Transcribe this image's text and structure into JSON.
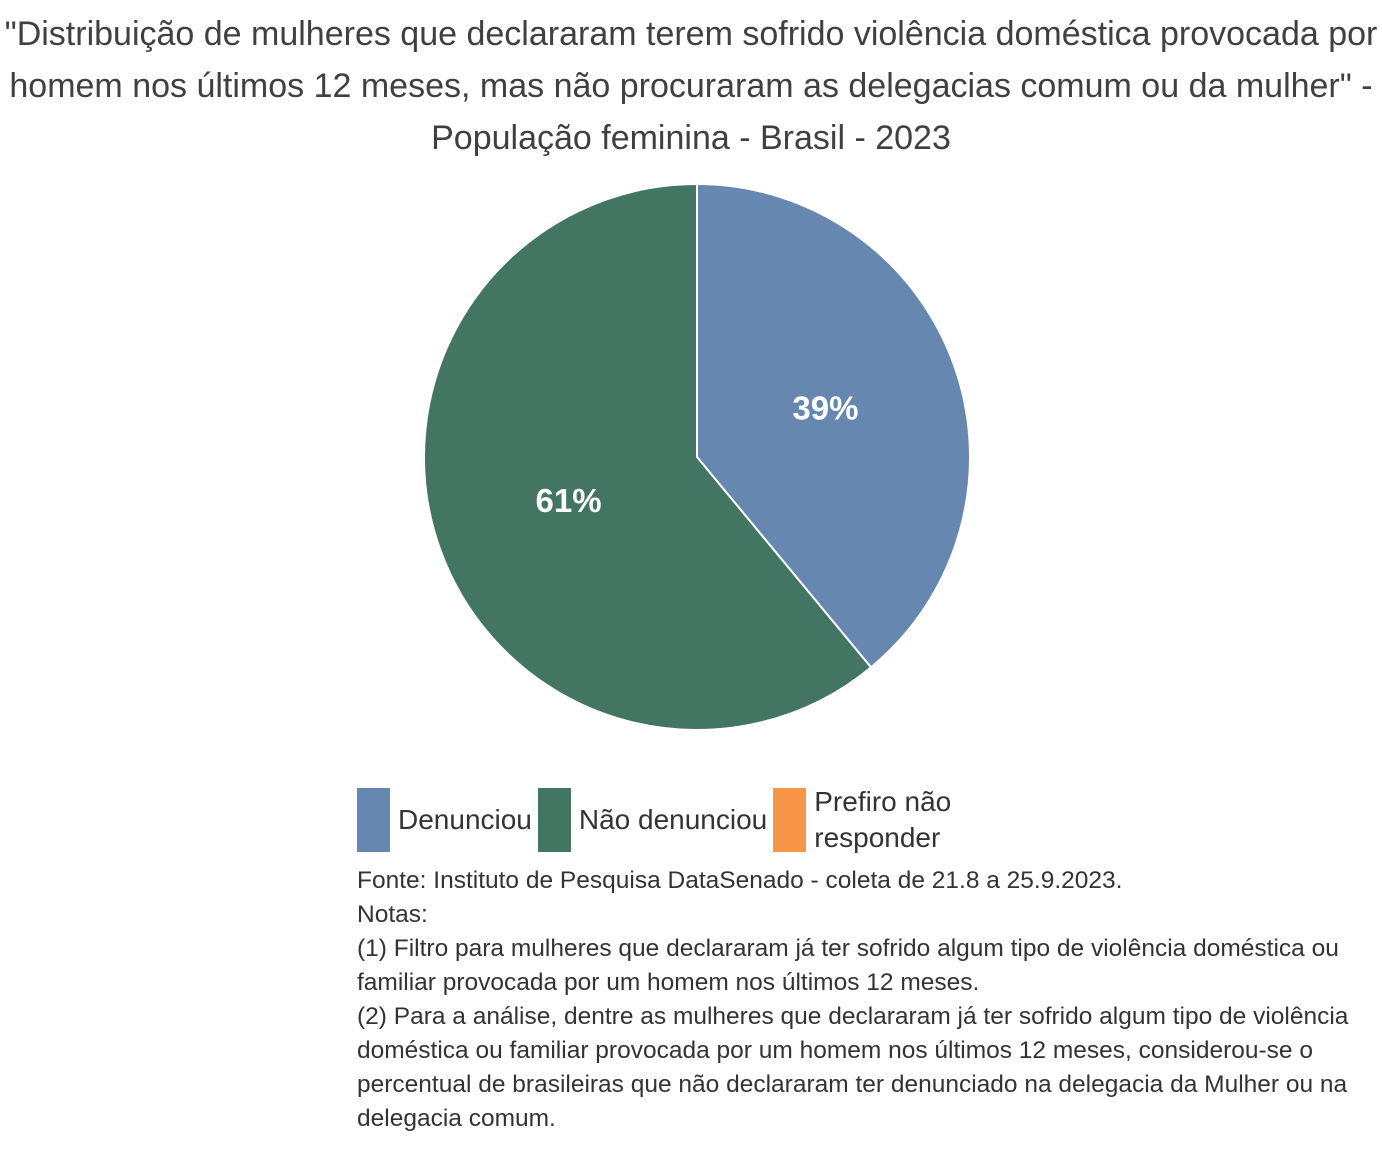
{
  "chart_data": {
    "type": "pie",
    "title": "\"Distribuição de mulheres que declararam terem sofrido violência doméstica provocada por homem nos últimos 12 meses, mas não procuraram as delegacias comum ou da mulher\" - População feminina - Brasil - 2023",
    "categories": [
      "Denunciou",
      "Não denunciou",
      "Prefiro não responder"
    ],
    "values": [
      39,
      61,
      0
    ],
    "value_labels": [
      "39%",
      "61%",
      null
    ],
    "colors": [
      "#6688b0",
      "#437563",
      "#f79646"
    ],
    "legend": "bottom",
    "notes": [
      "Fonte: Instituto de Pesquisa DataSenado - coleta de 21.8 a 25.9.2023.",
      "Notas:",
      "(1) Filtro para mulheres que declararam já ter sofrido algum tipo de violência doméstica ou familiar provocada por um homem nos últimos 12 meses.",
      "(2) Para a análise, dentre as mulheres que declararam já ter sofrido algum tipo de violência doméstica ou familiar provocada por um homem nos últimos 12 meses, considerou-se o percentual de brasileiras que não declararam ter denunciado na delegacia da Mulher ou na delegacia comum."
    ]
  }
}
